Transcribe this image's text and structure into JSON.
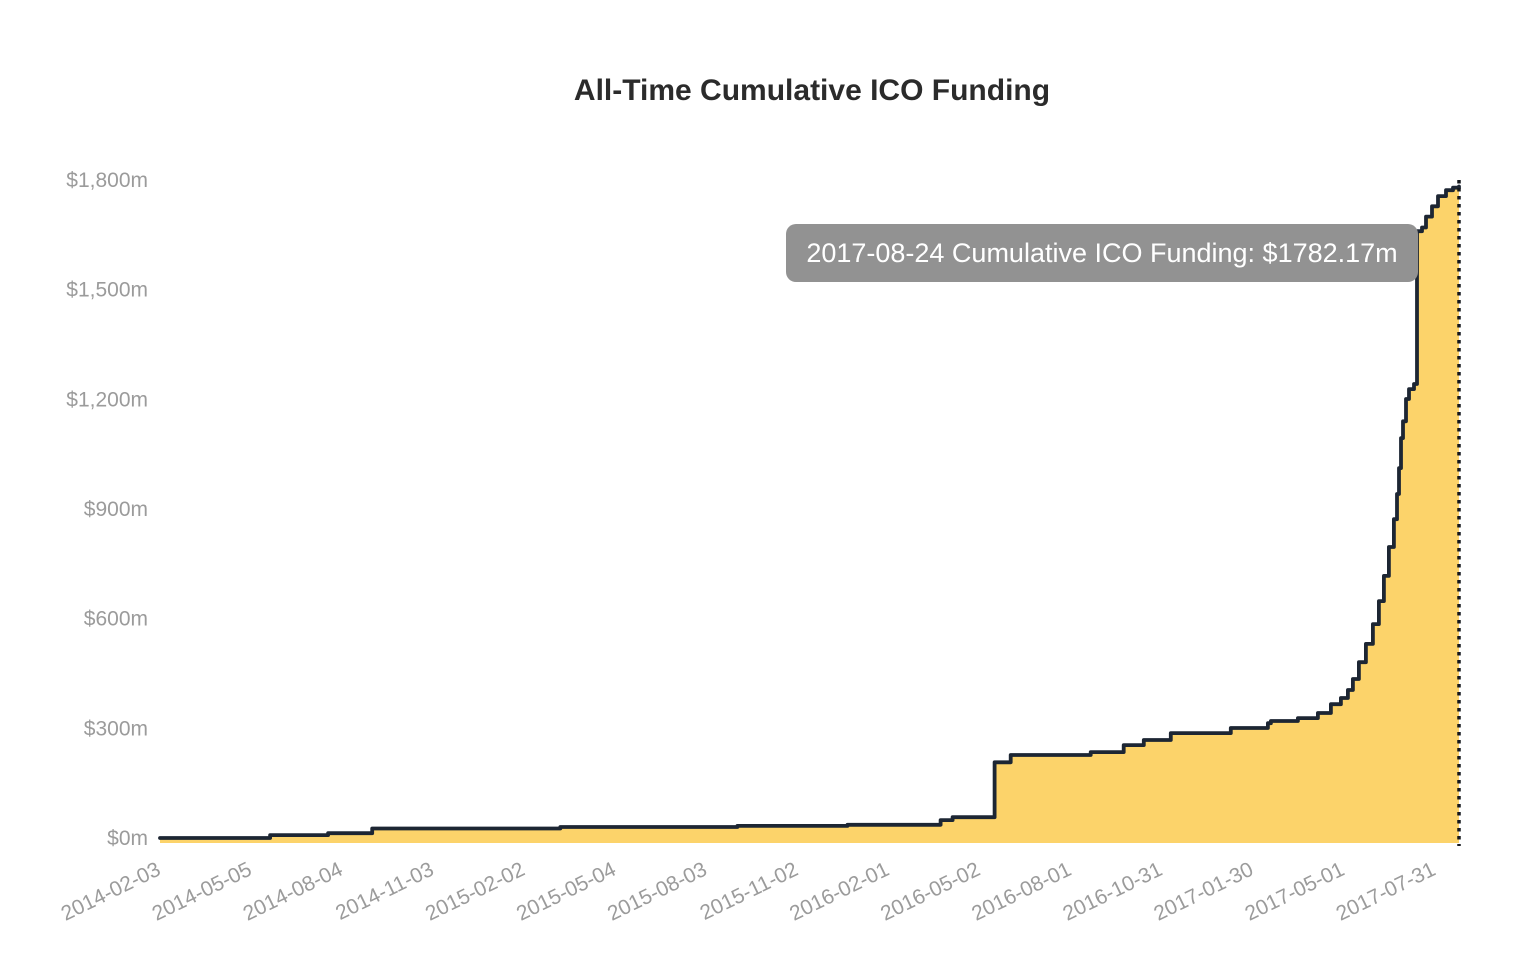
{
  "chart_data": {
    "type": "area",
    "title": "All-Time Cumulative ICO Funding",
    "series_name": "Cumulative ICO Funding",
    "unit_prefix": "$",
    "unit_suffix": "m",
    "grid": false,
    "legend": "none",
    "ylim": [
      0,
      1800
    ],
    "x_range": [
      "2014-02-03",
      "2017-08-24"
    ],
    "y_ticks": [
      {
        "value": 0,
        "label": "$0m"
      },
      {
        "value": 300,
        "label": "$300m"
      },
      {
        "value": 600,
        "label": "$600m"
      },
      {
        "value": 900,
        "label": "$900m"
      },
      {
        "value": 1200,
        "label": "$1,200m"
      },
      {
        "value": 1500,
        "label": "$1,500m"
      },
      {
        "value": 1800,
        "label": "$1,800m"
      }
    ],
    "x_ticks": [
      "2014-02-03",
      "2014-05-05",
      "2014-08-04",
      "2014-11-03",
      "2015-02-02",
      "2015-05-04",
      "2015-08-03",
      "2015-11-02",
      "2016-02-01",
      "2016-05-02",
      "2016-08-01",
      "2016-10-31",
      "2017-01-30",
      "2017-05-01",
      "2017-07-31"
    ],
    "points": [
      {
        "date": "2014-02-03",
        "value": 0
      },
      {
        "date": "2014-05-24",
        "value": 8
      },
      {
        "date": "2014-07-21",
        "value": 13
      },
      {
        "date": "2014-09-03",
        "value": 26
      },
      {
        "date": "2015-03-10",
        "value": 30
      },
      {
        "date": "2015-09-03",
        "value": 33
      },
      {
        "date": "2015-12-22",
        "value": 36
      },
      {
        "date": "2016-03-24",
        "value": 49
      },
      {
        "date": "2016-04-05",
        "value": 57
      },
      {
        "date": "2016-05-17",
        "value": 207
      },
      {
        "date": "2016-06-02",
        "value": 227
      },
      {
        "date": "2016-08-21",
        "value": 235
      },
      {
        "date": "2016-09-23",
        "value": 254
      },
      {
        "date": "2016-10-13",
        "value": 268
      },
      {
        "date": "2016-11-09",
        "value": 287
      },
      {
        "date": "2017-01-08",
        "value": 301
      },
      {
        "date": "2017-02-14",
        "value": 314
      },
      {
        "date": "2017-02-17",
        "value": 320
      },
      {
        "date": "2017-03-16",
        "value": 328
      },
      {
        "date": "2017-04-05",
        "value": 342
      },
      {
        "date": "2017-04-18",
        "value": 366
      },
      {
        "date": "2017-04-28",
        "value": 383
      },
      {
        "date": "2017-05-05",
        "value": 405
      },
      {
        "date": "2017-05-10",
        "value": 435
      },
      {
        "date": "2017-05-16",
        "value": 481
      },
      {
        "date": "2017-05-23",
        "value": 531
      },
      {
        "date": "2017-05-30",
        "value": 585
      },
      {
        "date": "2017-06-05",
        "value": 648
      },
      {
        "date": "2017-06-10",
        "value": 717
      },
      {
        "date": "2017-06-15",
        "value": 796
      },
      {
        "date": "2017-06-20",
        "value": 872
      },
      {
        "date": "2017-06-23",
        "value": 941
      },
      {
        "date": "2017-06-25",
        "value": 1012
      },
      {
        "date": "2017-06-27",
        "value": 1094
      },
      {
        "date": "2017-06-29",
        "value": 1140
      },
      {
        "date": "2017-07-02",
        "value": 1201
      },
      {
        "date": "2017-07-05",
        "value": 1228
      },
      {
        "date": "2017-07-10",
        "value": 1242
      },
      {
        "date": "2017-07-13",
        "value": 1660
      },
      {
        "date": "2017-07-18",
        "value": 1670
      },
      {
        "date": "2017-07-22",
        "value": 1700
      },
      {
        "date": "2017-07-28",
        "value": 1728
      },
      {
        "date": "2017-08-03",
        "value": 1756
      },
      {
        "date": "2017-08-11",
        "value": 1772
      },
      {
        "date": "2017-08-18",
        "value": 1779
      },
      {
        "date": "2017-08-24",
        "value": 1782.17
      }
    ],
    "cursor": {
      "date": "2017-08-24",
      "style": "dotted"
    },
    "colors": {
      "area_fill": "#FCD36A",
      "line": "#1D2633",
      "cursor": "#15181D",
      "tick_label": "#9B9B9B",
      "title": "#2B2B2B",
      "background": "#FFFFFF"
    },
    "tooltip": {
      "text": "2017-08-24 Cumulative ICO Funding: $1782.17m",
      "date": "2017-08-24",
      "value": 1782.17,
      "background": "#929292",
      "text_color": "#FFFFFF"
    }
  }
}
